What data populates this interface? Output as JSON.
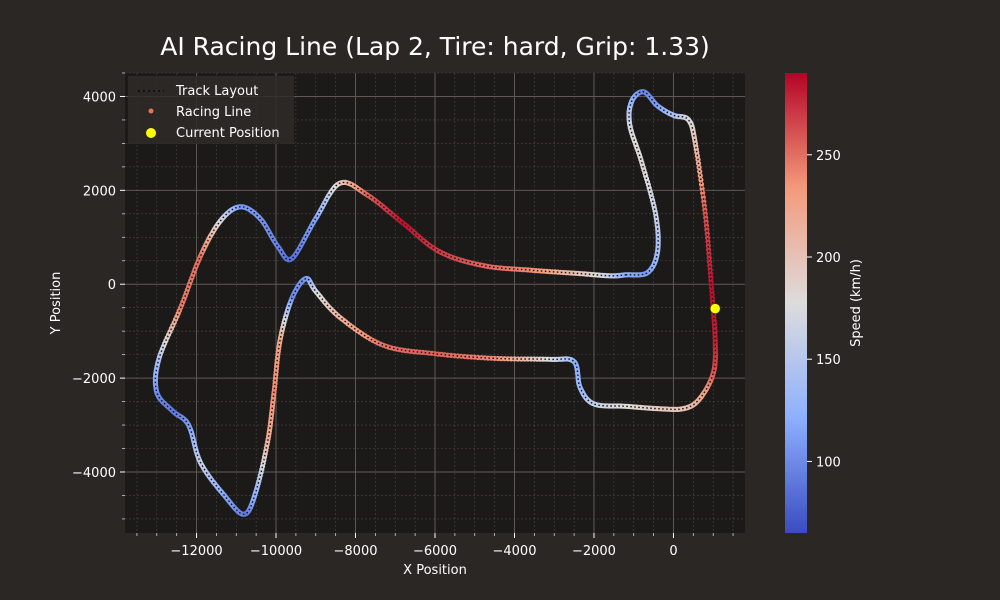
{
  "chart_data": {
    "type": "scatter",
    "title": "AI Racing Line (Lap 2, Tire: hard, Grip: 1.33)",
    "xlabel": "X Position",
    "ylabel": "Y Position",
    "xlim": [
      -13800,
      1800
    ],
    "ylim": [
      -5300,
      4500
    ],
    "xticks": [
      -12000,
      -10000,
      -8000,
      -6000,
      -4000,
      -2000,
      0
    ],
    "yticks": [
      4000,
      2000,
      0,
      -2000,
      -4000
    ],
    "grid": true,
    "legend": {
      "placement": "top-left",
      "entries": [
        "Track Layout",
        "Racing Line",
        "Current Position"
      ]
    },
    "colorbar": {
      "label": "Speed (km/h)",
      "ticks": [
        100,
        150,
        200,
        250
      ],
      "range": [
        65,
        290
      ]
    },
    "track_waypoints": [
      {
        "x": -1200,
        "y": 200,
        "v": 120
      },
      {
        "x": -650,
        "y": 250,
        "v": 110
      },
      {
        "x": -400,
        "y": 700,
        "v": 135
      },
      {
        "x": -450,
        "y": 1500,
        "v": 160
      },
      {
        "x": -800,
        "y": 2600,
        "v": 185
      },
      {
        "x": -1100,
        "y": 3400,
        "v": 170
      },
      {
        "x": -1050,
        "y": 3900,
        "v": 130
      },
      {
        "x": -750,
        "y": 4100,
        "v": 95
      },
      {
        "x": -400,
        "y": 3800,
        "v": 110
      },
      {
        "x": 0,
        "y": 3600,
        "v": 140
      },
      {
        "x": 380,
        "y": 3500,
        "v": 170
      },
      {
        "x": 550,
        "y": 3000,
        "v": 200
      },
      {
        "x": 800,
        "y": 1500,
        "v": 260
      },
      {
        "x": 950,
        "y": 0,
        "v": 285
      },
      {
        "x": 1050,
        "y": -1200,
        "v": 280
      },
      {
        "x": 1000,
        "y": -1900,
        "v": 260
      },
      {
        "x": 650,
        "y": -2450,
        "v": 220
      },
      {
        "x": 250,
        "y": -2650,
        "v": 200
      },
      {
        "x": -400,
        "y": -2650,
        "v": 195
      },
      {
        "x": -1200,
        "y": -2600,
        "v": 180
      },
      {
        "x": -2000,
        "y": -2550,
        "v": 160
      },
      {
        "x": -2350,
        "y": -2200,
        "v": 130
      },
      {
        "x": -2500,
        "y": -1650,
        "v": 120
      },
      {
        "x": -3100,
        "y": -1600,
        "v": 170
      },
      {
        "x": -4500,
        "y": -1580,
        "v": 240
      },
      {
        "x": -6000,
        "y": -1480,
        "v": 255
      },
      {
        "x": -7300,
        "y": -1300,
        "v": 250
      },
      {
        "x": -8400,
        "y": -700,
        "v": 215
      },
      {
        "x": -9000,
        "y": -150,
        "v": 170
      },
      {
        "x": -9250,
        "y": 120,
        "v": 110
      },
      {
        "x": -9600,
        "y": -300,
        "v": 100
      },
      {
        "x": -9900,
        "y": -1200,
        "v": 225
      },
      {
        "x": -10050,
        "y": -2300,
        "v": 240
      },
      {
        "x": -10200,
        "y": -3300,
        "v": 220
      },
      {
        "x": -10500,
        "y": -4400,
        "v": 130
      },
      {
        "x": -10800,
        "y": -4900,
        "v": 90
      },
      {
        "x": -11300,
        "y": -4500,
        "v": 115
      },
      {
        "x": -11900,
        "y": -3800,
        "v": 160
      },
      {
        "x": -12200,
        "y": -3000,
        "v": 110
      },
      {
        "x": -12600,
        "y": -2700,
        "v": 90
      },
      {
        "x": -13000,
        "y": -2300,
        "v": 100
      },
      {
        "x": -12950,
        "y": -1600,
        "v": 140
      },
      {
        "x": -12400,
        "y": -500,
        "v": 245
      },
      {
        "x": -11900,
        "y": 600,
        "v": 250
      },
      {
        "x": -11400,
        "y": 1350,
        "v": 175
      },
      {
        "x": -10900,
        "y": 1650,
        "v": 110
      },
      {
        "x": -10400,
        "y": 1400,
        "v": 105
      },
      {
        "x": -9950,
        "y": 800,
        "v": 95
      },
      {
        "x": -9600,
        "y": 550,
        "v": 85
      },
      {
        "x": -9000,
        "y": 1400,
        "v": 115
      },
      {
        "x": -8400,
        "y": 2150,
        "v": 190
      },
      {
        "x": -7700,
        "y": 1900,
        "v": 255
      },
      {
        "x": -6800,
        "y": 1300,
        "v": 285
      },
      {
        "x": -5900,
        "y": 700,
        "v": 270
      },
      {
        "x": -4800,
        "y": 400,
        "v": 255
      },
      {
        "x": -3600,
        "y": 300,
        "v": 240
      },
      {
        "x": -2400,
        "y": 230,
        "v": 200
      },
      {
        "x": -1600,
        "y": 180,
        "v": 160
      }
    ],
    "current_position": {
      "x": 1050,
      "y": -520
    }
  }
}
